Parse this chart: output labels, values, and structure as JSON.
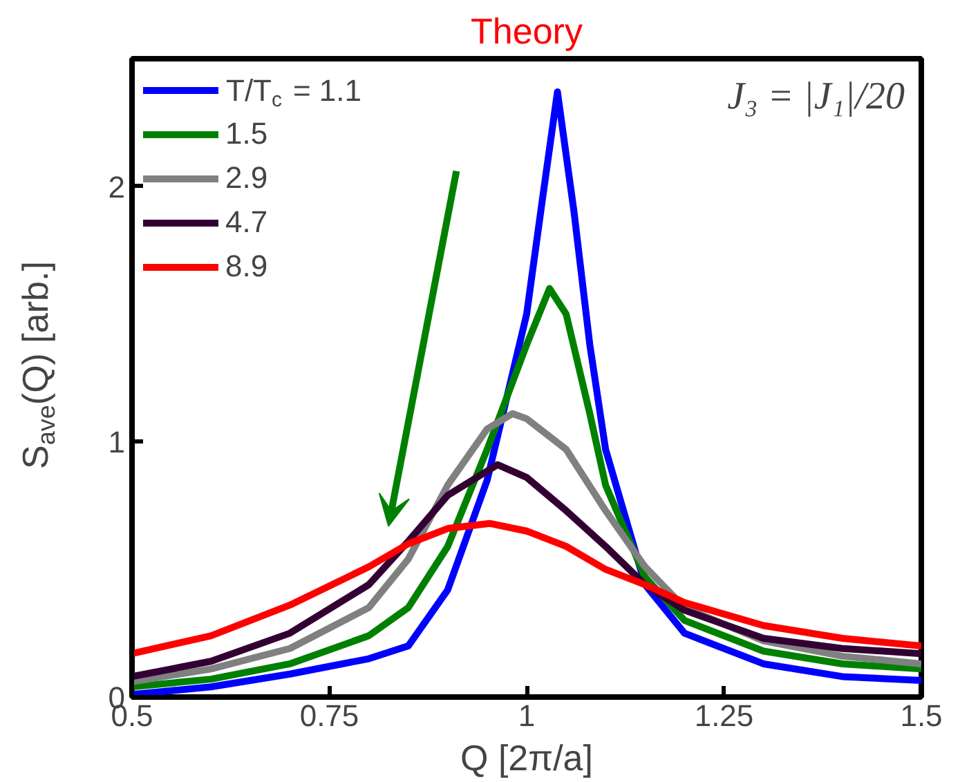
{
  "chart_data": {
    "type": "line",
    "title": "Theory",
    "xlabel": "Q [2π/a]",
    "ylabel": "S$_{ave}$(Q) [arb.]",
    "xlim": [
      0.5,
      1.5
    ],
    "ylim": [
      0,
      2.5
    ],
    "xticks": [
      0.5,
      0.75,
      1,
      1.25,
      1.5
    ],
    "yticks": [
      0,
      1,
      2
    ],
    "grid": false,
    "legend": "top left",
    "annotations": [
      "J₃ = |J₁|/20"
    ],
    "series": [
      {
        "name": "T/T$_{c}$ = 1.1",
        "color": "#0000ff",
        "x": [
          0.5,
          0.6,
          0.7,
          0.8,
          0.85,
          0.9,
          0.95,
          1.0,
          1.02,
          1.039,
          1.06,
          1.08,
          1.1,
          1.15,
          1.2,
          1.3,
          1.4,
          1.5
        ],
        "values": [
          0.01,
          0.04,
          0.09,
          0.15,
          0.2,
          0.42,
          0.85,
          1.5,
          1.95,
          2.37,
          1.9,
          1.38,
          0.97,
          0.44,
          0.25,
          0.13,
          0.08,
          0.065
        ]
      },
      {
        "name": "1.5",
        "color": "#008000",
        "x": [
          0.5,
          0.6,
          0.7,
          0.8,
          0.85,
          0.9,
          0.95,
          1.0,
          1.029,
          1.05,
          1.08,
          1.1,
          1.15,
          1.2,
          1.3,
          1.4,
          1.5
        ],
        "values": [
          0.04,
          0.07,
          0.13,
          0.24,
          0.35,
          0.59,
          0.97,
          1.38,
          1.6,
          1.5,
          1.11,
          0.83,
          0.47,
          0.3,
          0.18,
          0.13,
          0.11
        ]
      },
      {
        "name": "2.9",
        "color": "#808080",
        "x": [
          0.5,
          0.6,
          0.7,
          0.8,
          0.85,
          0.9,
          0.95,
          0.982,
          1.0,
          1.05,
          1.1,
          1.15,
          1.2,
          1.3,
          1.4,
          1.5
        ],
        "values": [
          0.06,
          0.11,
          0.19,
          0.35,
          0.54,
          0.83,
          1.05,
          1.11,
          1.09,
          0.97,
          0.73,
          0.51,
          0.35,
          0.22,
          0.16,
          0.13
        ]
      },
      {
        "name": "4.7",
        "color": "#330033",
        "x": [
          0.5,
          0.6,
          0.7,
          0.8,
          0.85,
          0.9,
          0.963,
          1.0,
          1.05,
          1.1,
          1.15,
          1.2,
          1.3,
          1.4,
          1.5
        ],
        "values": [
          0.08,
          0.14,
          0.25,
          0.44,
          0.61,
          0.79,
          0.91,
          0.86,
          0.73,
          0.59,
          0.44,
          0.34,
          0.23,
          0.19,
          0.17
        ]
      },
      {
        "name": "8.9",
        "color": "#ff0000",
        "x": [
          0.5,
          0.6,
          0.7,
          0.8,
          0.85,
          0.9,
          0.953,
          1.0,
          1.05,
          1.1,
          1.15,
          1.2,
          1.3,
          1.4,
          1.5
        ],
        "values": [
          0.17,
          0.24,
          0.36,
          0.51,
          0.6,
          0.66,
          0.68,
          0.65,
          0.59,
          0.5,
          0.44,
          0.37,
          0.28,
          0.23,
          0.2
        ]
      }
    ]
  }
}
